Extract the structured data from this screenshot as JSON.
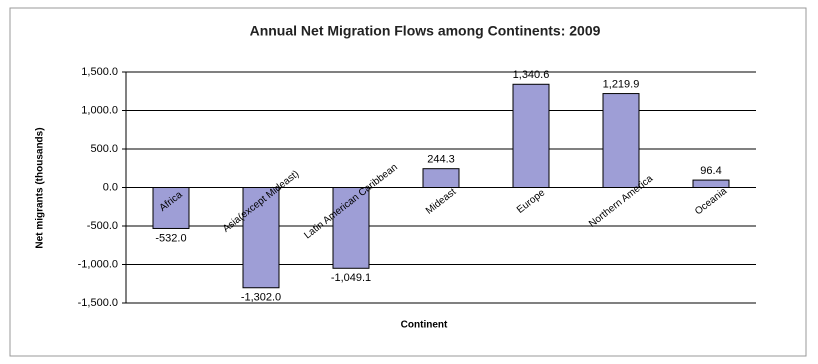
{
  "chart_data": {
    "type": "bar",
    "title": "Annual Net Migration Flows among Continents: 2009",
    "x_label": "Continent",
    "y_label": "Net migrants (thousands)",
    "categories": [
      "Africa",
      "Asia(except Mideast)",
      "Latin American Caribbean",
      "Mideast",
      "Europe",
      "Northern America",
      "Oceania"
    ],
    "values": [
      -532.0,
      -1302.0,
      -1049.1,
      244.3,
      1340.6,
      1219.9,
      96.4
    ],
    "value_labels": [
      "-532.0",
      "-1,302.0",
      "-1,049.1",
      "244.3",
      "1,340.6",
      "1,219.9",
      "96.4"
    ],
    "color": "#9e9ed6",
    "ylim": [
      -1500,
      1500
    ],
    "yticks": [
      {
        "value": -1500,
        "label": "-1,500.0"
      },
      {
        "value": -1000,
        "label": "-1,000.0"
      },
      {
        "value": -500,
        "label": "-500.0"
      },
      {
        "value": 0,
        "label": "0.0"
      },
      {
        "value": 500,
        "label": "500.0"
      },
      {
        "value": 1000,
        "label": "1,000.0"
      },
      {
        "value": 1500,
        "label": "1,500.0"
      }
    ],
    "grid": true
  }
}
